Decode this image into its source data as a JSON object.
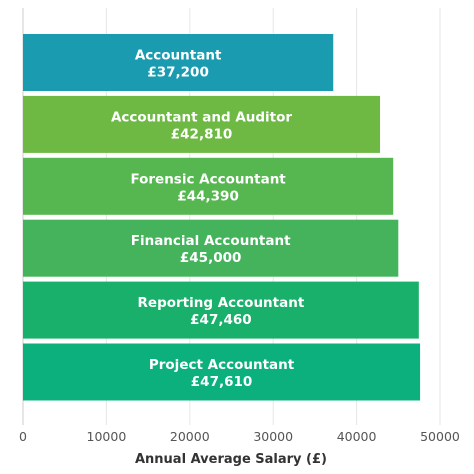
{
  "chart_data": {
    "type": "bar",
    "orientation": "horizontal",
    "title": "",
    "xlabel": "Annual Average Salary (£)",
    "ylabel": "",
    "xlim": [
      0,
      50000
    ],
    "grid": "vertical",
    "x_ticks": [
      0,
      10000,
      20000,
      30000,
      40000,
      50000
    ],
    "x_tick_labels": [
      "0",
      "10000",
      "20000",
      "30000",
      "40000",
      "50000"
    ],
    "categories": [
      "Accountant",
      "Accountant and Auditor",
      "Forensic Accountant",
      "Financial Accountant",
      "Reporting Accountant",
      "Project Accountant"
    ],
    "values": [
      37200,
      42810,
      44390,
      45000,
      47460,
      47610
    ],
    "value_labels": [
      "£37,200",
      "£42,810",
      "£44,390",
      "£45,000",
      "£47,460",
      "£47,610"
    ],
    "colors": [
      "#1a9bb0",
      "#6db944",
      "#56b750",
      "#44b35c",
      "#18b06a",
      "#0cb07c"
    ]
  }
}
